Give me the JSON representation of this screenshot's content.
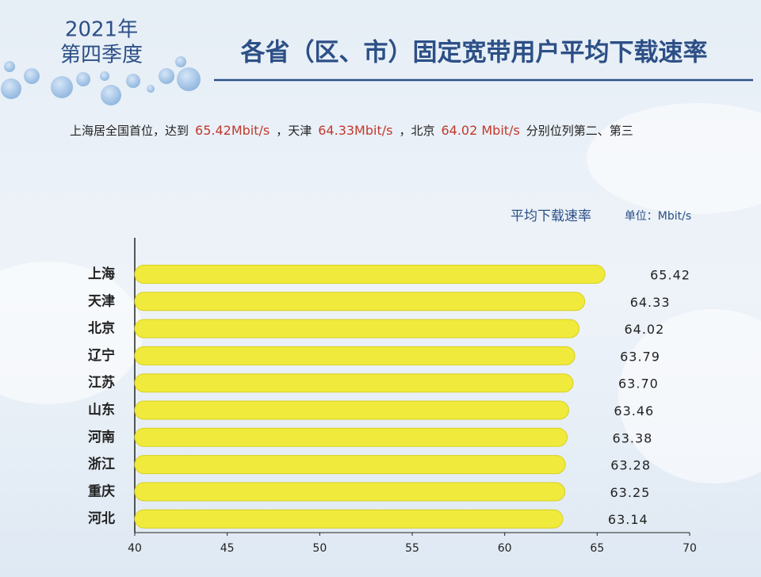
{
  "chart_data": {
    "type": "bar",
    "orientation": "horizontal",
    "year_label": "2021年",
    "quarter_label": "第四季度",
    "title": "各省（区、市）固定宽带用户平均下载速率",
    "subtitle_parts": [
      {
        "text": "上海居全国首位，达到",
        "color": "#222222"
      },
      {
        "text": "65.42Mbit/s",
        "color": "#c0392b"
      },
      {
        "text": "，天津",
        "color": "#222222"
      },
      {
        "text": "64.33Mbit/s",
        "color": "#c0392b"
      },
      {
        "text": "，北京",
        "color": "#222222"
      },
      {
        "text": "64.02 Mbit/s",
        "color": "#c0392b"
      },
      {
        "text": "分别位列第二、第三",
        "color": "#222222"
      }
    ],
    "series_label": "平均下载速率",
    "unit_label": "单位：Mbit/s",
    "categories": [
      "上海",
      "天津",
      "北京",
      "辽宁",
      "江苏",
      "山东",
      "河南",
      "浙江",
      "重庆",
      "河北"
    ],
    "values": [
      65.42,
      64.33,
      64.02,
      63.79,
      63.7,
      63.46,
      63.38,
      63.28,
      63.25,
      63.14
    ],
    "value_labels": [
      "65.42",
      "64.33",
      "64.02",
      "63.79",
      "63.70",
      "63.46",
      "63.38",
      "63.28",
      "63.25",
      "63.14"
    ],
    "color": "#f0ea3c",
    "xlim": [
      40,
      70
    ],
    "xticks": [
      40,
      45,
      50,
      55,
      60,
      65,
      70
    ]
  }
}
